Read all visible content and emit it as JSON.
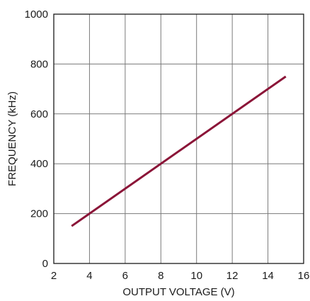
{
  "chart_data": {
    "type": "line",
    "title": "",
    "xlabel": "OUTPUT VOLTAGE (V)",
    "ylabel": "FREQUENCY (kHz)",
    "xlim": [
      2,
      16
    ],
    "ylim": [
      0,
      1000
    ],
    "x_ticks": [
      2,
      4,
      6,
      8,
      10,
      12,
      14,
      16
    ],
    "y_ticks": [
      0,
      200,
      400,
      600,
      800,
      1000
    ],
    "grid": true,
    "series": [
      {
        "color": "#8b1538",
        "x": [
          3,
          15
        ],
        "y": [
          150,
          750
        ]
      }
    ]
  }
}
